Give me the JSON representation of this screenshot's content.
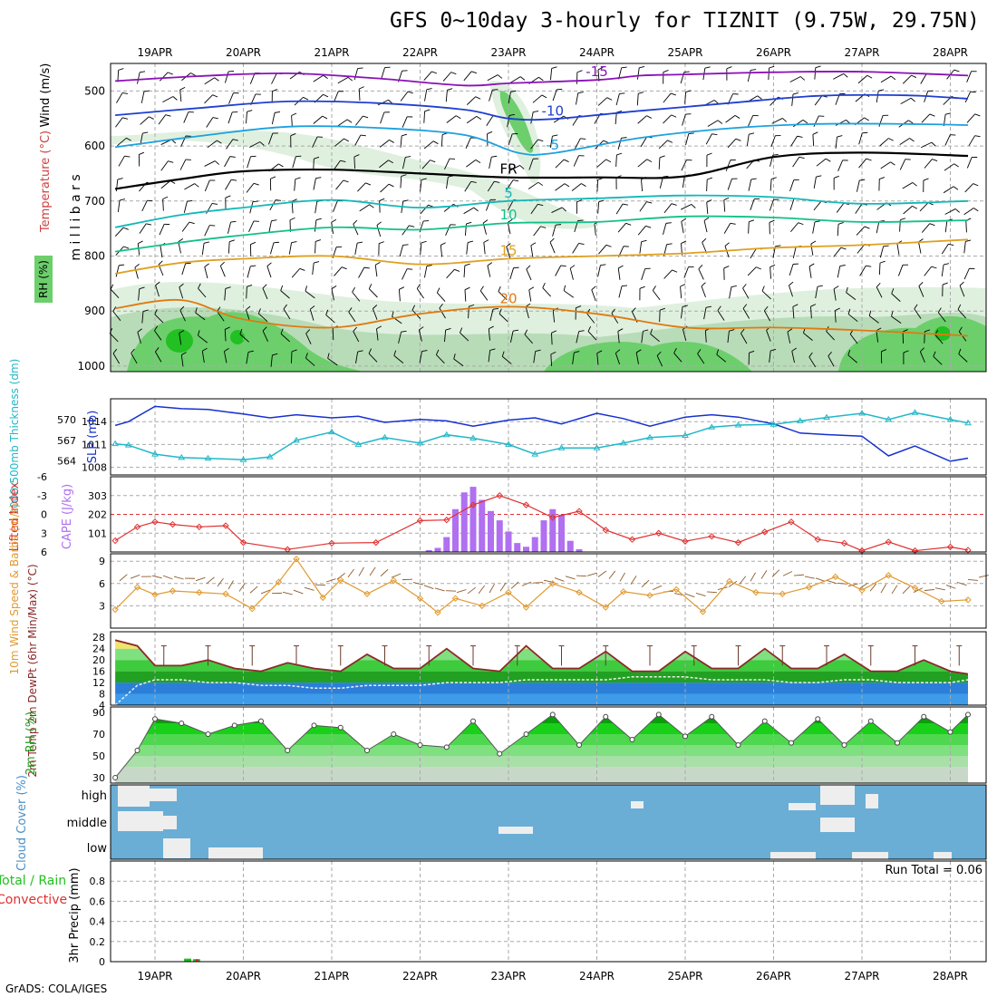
{
  "title": "GFS 0~10day 3-hourly for TIZNIT (9.75W, 29.75N)",
  "credit": "GrADS: COLA/IGES",
  "colors": {
    "rh_light": "#dff0df",
    "rh_mid": "#b8dcb8",
    "rh_green": "#6ccf6c",
    "rh_dark": "#22c022",
    "temp_m15": "#8a10b8",
    "temp_m10": "#1f3fd0",
    "temp_m5": "#1ca0e0",
    "temp_fr": "#000000",
    "temp_p5": "#12b8b8",
    "temp_p10": "#12c08a",
    "temp_p15": "#e0a020",
    "temp_p20": "#e07a10",
    "slp": "#1530d0",
    "thick": "#20b8c8",
    "li": "#e03030",
    "cape": "#b070f0",
    "wind": "#e09a30",
    "temp2m": "#8b2a2a",
    "dew": "#f0f0f0",
    "rh2m_line": "#555555",
    "cloud": "#6aaed6",
    "precip_total": "#20c020",
    "precip_conv": "#e03030"
  },
  "chart_data": [
    {
      "id": "upper_air",
      "type": "heatmap",
      "ylabel": "m i l l i b a r s",
      "legend_rh": "RH (%)",
      "legend_temp": "Temperature (°C)",
      "legend_wind": "Wind (m/s)",
      "x_dates": [
        "19APR",
        "20APR",
        "21APR",
        "22APR",
        "23APR",
        "24APR",
        "25APR",
        "26APR",
        "27APR",
        "28APR"
      ],
      "y_ticks": [
        500,
        600,
        700,
        800,
        900,
        1000
      ],
      "ylim": [
        1000,
        450
      ],
      "x_range_days": [
        -0.45,
        9.2
      ],
      "isotherms": [
        {
          "label": "-15",
          "color_key": "temp_m15",
          "points": [
            [
              -0.45,
              482
            ],
            [
              0.5,
              473
            ],
            [
              1.5,
              468
            ],
            [
              2.5,
              477
            ],
            [
              3.5,
              490
            ],
            [
              4,
              486
            ],
            [
              5,
              480
            ],
            [
              5.5,
              472
            ],
            [
              6,
              470
            ],
            [
              7,
              466
            ],
            [
              8,
              465
            ],
            [
              9.2,
              472
            ]
          ]
        },
        {
          "label": "-10",
          "color_key": "temp_m10",
          "points": [
            [
              -0.45,
              544
            ],
            [
              0.5,
              531
            ],
            [
              1.5,
              519
            ],
            [
              2.5,
              522
            ],
            [
              3.5,
              534
            ],
            [
              4,
              550
            ],
            [
              4.5,
              551
            ],
            [
              5.5,
              536
            ],
            [
              6.5,
              522
            ],
            [
              7.5,
              509
            ],
            [
              8.5,
              508
            ],
            [
              9.2,
              514
            ]
          ]
        },
        {
          "label": "-5",
          "color_key": "temp_m5",
          "points": [
            [
              -0.45,
              602
            ],
            [
              0.5,
              582
            ],
            [
              1.5,
              565
            ],
            [
              2.5,
              567
            ],
            [
              3.5,
              580
            ],
            [
              4.1,
              612
            ],
            [
              4.5,
              613
            ],
            [
              5.5,
              585
            ],
            [
              6.5,
              568
            ],
            [
              7.5,
              560
            ],
            [
              8.5,
              560
            ],
            [
              9.2,
              562
            ]
          ]
        },
        {
          "label": "FR",
          "color_key": "temp_fr",
          "points": [
            [
              -0.45,
              678
            ],
            [
              0.3,
              660
            ],
            [
              1,
              646
            ],
            [
              2,
              643
            ],
            [
              3,
              650
            ],
            [
              4,
              657
            ],
            [
              5,
              657
            ],
            [
              6,
              655
            ],
            [
              7,
              620
            ],
            [
              8,
              612
            ],
            [
              9.2,
              618
            ]
          ]
        },
        {
          "label": "5",
          "color_key": "temp_p5",
          "points": [
            [
              -0.45,
              748
            ],
            [
              0.3,
              725
            ],
            [
              1,
              712
            ],
            [
              2,
              698
            ],
            [
              3,
              712
            ],
            [
              4,
              700
            ],
            [
              5,
              695
            ],
            [
              6,
              690
            ],
            [
              7,
              693
            ],
            [
              8,
              705
            ],
            [
              9.2,
              700
            ]
          ]
        },
        {
          "label": "10",
          "color_key": "temp_p10",
          "points": [
            [
              -0.45,
              792
            ],
            [
              0.3,
              775
            ],
            [
              1,
              762
            ],
            [
              2,
              748
            ],
            [
              3,
              752
            ],
            [
              4,
              740
            ],
            [
              5,
              738
            ],
            [
              6,
              728
            ],
            [
              7,
              730
            ],
            [
              8,
              738
            ],
            [
              9.2,
              735
            ]
          ]
        },
        {
          "label": "15",
          "color_key": "temp_p15",
          "points": [
            [
              -0.45,
              832
            ],
            [
              0.3,
              812
            ],
            [
              1,
              805
            ],
            [
              2,
              800
            ],
            [
              3,
              815
            ],
            [
              4,
              805
            ],
            [
              5,
              800
            ],
            [
              6,
              795
            ],
            [
              7,
              785
            ],
            [
              8,
              780
            ],
            [
              9.2,
              770
            ]
          ]
        },
        {
          "label": "20",
          "color_key": "temp_p20",
          "points": [
            [
              -0.45,
              895
            ],
            [
              0.3,
              880
            ],
            [
              1,
              915
            ],
            [
              2,
              930
            ],
            [
              3,
              905
            ],
            [
              4,
              892
            ],
            [
              5,
              905
            ],
            [
              6,
              930
            ],
            [
              7,
              930
            ],
            [
              8,
              935
            ],
            [
              9.2,
              945
            ]
          ]
        }
      ]
    },
    {
      "id": "slp_thickness",
      "type": "line",
      "ylabel_left": "1000-500mb Thickness (dm)",
      "ylabel_right": "SLP (mb)",
      "thickness_ticks": [
        564,
        567,
        570
      ],
      "slp_ticks": [
        1008,
        1011,
        1014
      ],
      "slp_range": [
        1007,
        1017
      ],
      "thickness_range": [
        562,
        573
      ],
      "x_days": [
        -0.45,
        -0.3,
        0,
        0.3,
        0.6,
        1,
        1.3,
        1.6,
        2,
        2.3,
        2.6,
        3,
        3.3,
        3.6,
        4,
        4.3,
        4.6,
        5,
        5.3,
        5.6,
        6,
        6.3,
        6.6,
        7,
        7.3,
        7.6,
        8,
        8.3,
        8.6,
        9,
        9.2
      ],
      "series": [
        {
          "name": "SLP",
          "color_key": "slp",
          "values": [
            1013.5,
            1014,
            1016.0,
            1015.7,
            1015.6,
            1015,
            1014.5,
            1014.9,
            1014.5,
            1014.7,
            1013.9,
            1014.3,
            1014.1,
            1013.4,
            1014.2,
            1014.5,
            1013.7,
            1015.1,
            1014.4,
            1013.4,
            1014.6,
            1014.9,
            1014.6,
            1013.7,
            1012.5,
            1012.3,
            1012.1,
            1009.5,
            1010.8,
            1008.8,
            1009.2
          ]
        },
        {
          "name": "Thickness",
          "color_key": "thick",
          "values": [
            566.5,
            566.3,
            565.0,
            564.5,
            564.4,
            564.2,
            564.6,
            567.0,
            568.2,
            566.4,
            567.4,
            566.6,
            567.8,
            567.3,
            566.4,
            565.0,
            565.9,
            565.9,
            566.6,
            567.4,
            567.7,
            568.9,
            569.2,
            569.3,
            569.8,
            570.3,
            570.9,
            570.0,
            571.0,
            570.0,
            569.5
          ]
        }
      ]
    },
    {
      "id": "li_cape",
      "type": "bar",
      "ylabel_left": "Lifted Index",
      "ylabel_right": "CAPE (J/kg)",
      "li_ticks": [
        -6,
        -3,
        0,
        3,
        6
      ],
      "cape_ticks": [
        101,
        202,
        303
      ],
      "li_range": [
        6,
        -6
      ],
      "cape_range": [
        0,
        404
      ],
      "cape_x_days": [
        3.1,
        3.2,
        3.3,
        3.4,
        3.5,
        3.6,
        3.7,
        3.8,
        3.9,
        4.0,
        4.1,
        4.2,
        4.3,
        4.4,
        4.5,
        4.6,
        4.7,
        4.8
      ],
      "cape_values": [
        10,
        22,
        80,
        230,
        320,
        350,
        280,
        220,
        170,
        110,
        48,
        28,
        80,
        170,
        230,
        200,
        60,
        15
      ],
      "li_x_days": [
        -0.45,
        -0.2,
        0,
        0.2,
        0.5,
        0.8,
        1.0,
        1.5,
        2.0,
        2.5,
        3.0,
        3.3,
        3.6,
        3.9,
        4.2,
        4.5,
        4.8,
        5.1,
        5.4,
        5.7,
        6.0,
        6.3,
        6.6,
        6.9,
        7.2,
        7.5,
        7.8,
        8.0,
        8.3,
        8.6,
        9.0,
        9.2
      ],
      "li_values": [
        4.2,
        2.0,
        1.2,
        1.6,
        2.0,
        1.8,
        4.5,
        5.6,
        4.6,
        4.5,
        1.0,
        0.9,
        -1.5,
        -3.0,
        -1.5,
        0.5,
        -0.5,
        2.5,
        4.0,
        3.0,
        4.3,
        3.5,
        4.5,
        2.8,
        1.2,
        4.0,
        4.6,
        5.8,
        4.4,
        5.8,
        5.2,
        5.7
      ]
    },
    {
      "id": "wind10m",
      "type": "line",
      "ylabel": "10m Wind Speed & Barbs (m/s)",
      "y_ticks": [
        3,
        6,
        9
      ],
      "ylim": [
        0,
        10
      ],
      "x_days": [
        -0.45,
        -0.2,
        0,
        0.2,
        0.5,
        0.8,
        1.1,
        1.4,
        1.6,
        1.9,
        2.1,
        2.4,
        2.7,
        3.0,
        3.2,
        3.4,
        3.7,
        4.0,
        4.2,
        4.5,
        4.8,
        5.1,
        5.3,
        5.6,
        5.9,
        6.2,
        6.5,
        6.8,
        7.1,
        7.4,
        7.7,
        8.0,
        8.3,
        8.6,
        8.9,
        9.2
      ],
      "series": [
        {
          "name": "Wind Speed",
          "color_key": "wind",
          "values": [
            2.5,
            5.5,
            4.5,
            5.0,
            4.8,
            4.6,
            2.6,
            6.2,
            9.3,
            4.1,
            6.5,
            4.6,
            6.4,
            4.0,
            2.1,
            4.0,
            3.0,
            4.8,
            2.8,
            6.0,
            4.8,
            2.8,
            4.9,
            4.4,
            5.2,
            2.2,
            6.3,
            4.8,
            4.6,
            5.5,
            6.9,
            5.1,
            7.1,
            5.4,
            3.6,
            3.8
          ]
        }
      ]
    },
    {
      "id": "temp2m",
      "type": "area",
      "ylabel": "2m Temp 2m DewPt (6hr Min/Max) (°C)",
      "y_ticks": [
        4,
        8,
        12,
        16,
        20,
        24,
        28
      ],
      "ylim": [
        4,
        30
      ],
      "x_days": [
        -0.45,
        -0.2,
        0.0,
        0.3,
        0.6,
        0.9,
        1.2,
        1.5,
        1.8,
        2.1,
        2.4,
        2.7,
        3.0,
        3.3,
        3.6,
        3.9,
        4.2,
        4.5,
        4.8,
        5.1,
        5.4,
        5.7,
        6.0,
        6.3,
        6.6,
        6.9,
        7.2,
        7.5,
        7.8,
        8.1,
        8.4,
        8.7,
        9.0,
        9.2
      ],
      "series": [
        {
          "name": "2m Temp",
          "color_key": "temp2m",
          "values": [
            27,
            25,
            18,
            18,
            20,
            17,
            16,
            19,
            17,
            16,
            22,
            17,
            17,
            24,
            17,
            16,
            25,
            17,
            17,
            23,
            16,
            16,
            23,
            17,
            17,
            24,
            17,
            17,
            22,
            16,
            16,
            20,
            16,
            15
          ]
        },
        {
          "name": "2m DewPt",
          "color_key": "dew",
          "values": [
            4,
            11,
            13,
            13,
            12,
            12,
            11,
            11,
            10,
            10,
            11,
            11,
            11,
            12,
            12,
            12,
            13,
            13,
            13,
            13,
            14,
            14,
            14,
            13,
            13,
            13,
            12,
            12,
            13,
            13,
            12,
            12,
            12,
            13
          ]
        }
      ]
    },
    {
      "id": "rh2m",
      "type": "area",
      "ylabel": "2m RH (%)",
      "y_ticks": [
        30,
        50,
        70,
        90
      ],
      "ylim": [
        25,
        95
      ],
      "x_days": [
        -0.45,
        -0.2,
        0.0,
        0.3,
        0.6,
        0.9,
        1.2,
        1.5,
        1.8,
        2.1,
        2.4,
        2.7,
        3.0,
        3.3,
        3.6,
        3.9,
        4.2,
        4.5,
        4.8,
        5.1,
        5.4,
        5.7,
        6.0,
        6.3,
        6.6,
        6.9,
        7.2,
        7.5,
        7.8,
        8.1,
        8.4,
        8.7,
        9.0,
        9.2
      ],
      "series": [
        {
          "name": "2m RH",
          "color_key": "rh2m_line",
          "values": [
            30,
            55,
            84,
            80,
            70,
            78,
            82,
            55,
            78,
            76,
            55,
            70,
            60,
            58,
            82,
            52,
            70,
            88,
            60,
            86,
            65,
            88,
            68,
            86,
            60,
            82,
            62,
            84,
            60,
            82,
            62,
            86,
            72,
            88
          ]
        }
      ]
    },
    {
      "id": "cloud",
      "type": "bar",
      "ylabel": "Cloud Cover (%)",
      "levels": [
        "high",
        "middle",
        "low"
      ]
    },
    {
      "id": "precip",
      "type": "bar",
      "ylabel": "3hr Precip (mm)",
      "legend_total": "Total / Rain",
      "legend_conv": "Convective",
      "run_total": "Run Total = 0.06",
      "y_ticks": [
        0,
        0.2,
        0.4,
        0.6,
        0.8
      ],
      "ylim": [
        0,
        1
      ],
      "bars": [
        {
          "x_day": 0.37,
          "total": 0.03,
          "conv": 0
        },
        {
          "x_day": 0.47,
          "total": 0.025,
          "conv": 0.025
        }
      ]
    }
  ]
}
